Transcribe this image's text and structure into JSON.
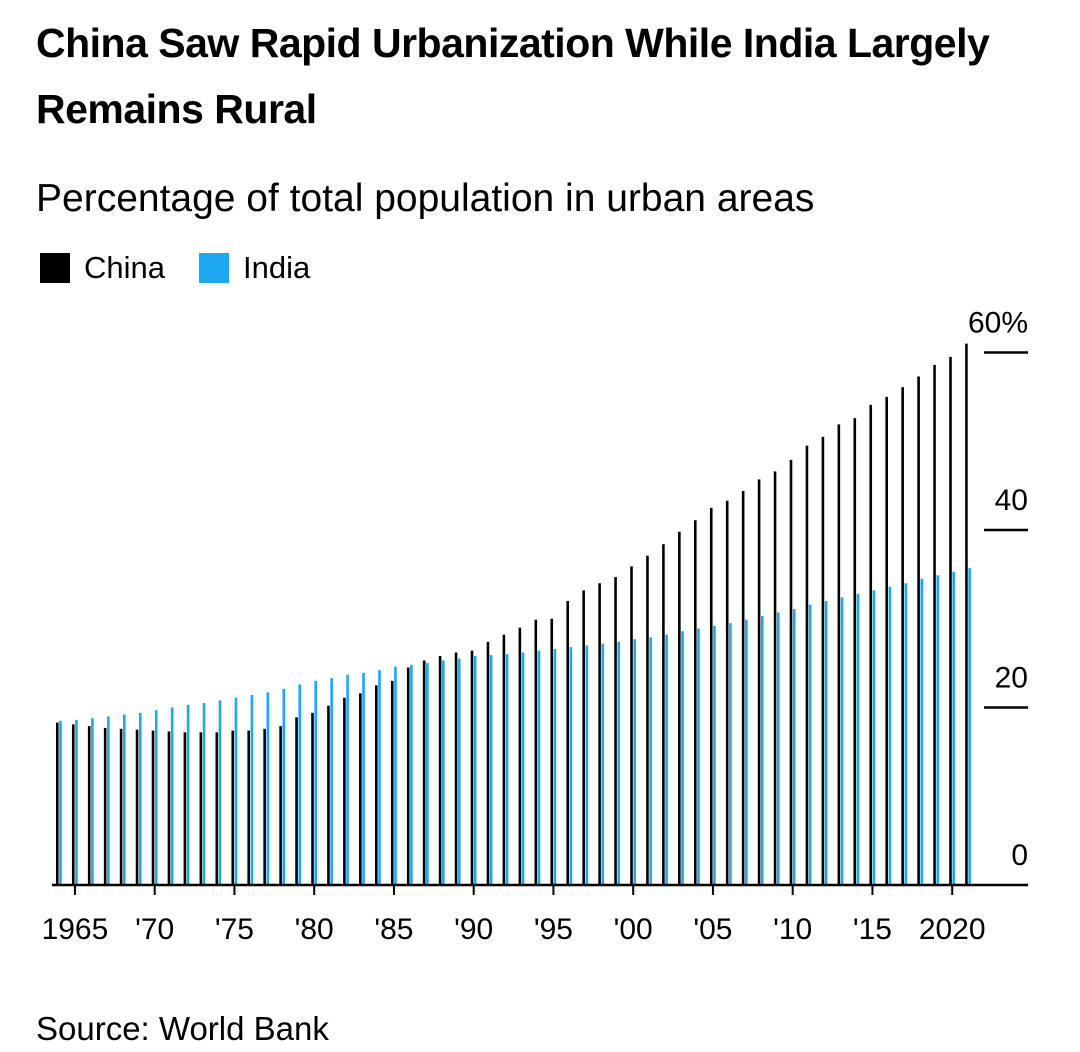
{
  "title": "China Saw Rapid Urbanization While India Largely Remains Rural",
  "subtitle": "Percentage of total population in urban areas",
  "source": "Source: World Bank",
  "colors": {
    "china": "#000000",
    "india": "#1da7ef"
  },
  "legend": [
    {
      "name": "China",
      "color": "#000000"
    },
    {
      "name": "India",
      "color": "#1da7ef"
    }
  ],
  "chart_data": {
    "type": "bar",
    "title": "China Saw Rapid Urbanization While India Largely Remains Rural",
    "subtitle": "Percentage of total population in urban areas",
    "xlabel": "",
    "ylabel": "",
    "ylim": [
      0,
      60
    ],
    "yticks": [
      0,
      20,
      40,
      60
    ],
    "ytick_labels": [
      "0",
      "20",
      "40",
      "60%"
    ],
    "xticks": [
      1965,
      1970,
      1975,
      1980,
      1985,
      1990,
      1995,
      2000,
      2005,
      2010,
      2015,
      2020
    ],
    "xtick_labels": [
      "1965",
      "'70",
      "'75",
      "'80",
      "'85",
      "'90",
      "'95",
      "'00",
      "'05",
      "'10",
      "'15",
      "2020"
    ],
    "legend_position": "top-left",
    "x": [
      1964,
      1965,
      1966,
      1967,
      1968,
      1969,
      1970,
      1971,
      1972,
      1973,
      1974,
      1975,
      1976,
      1977,
      1978,
      1979,
      1980,
      1981,
      1982,
      1983,
      1984,
      1985,
      1986,
      1987,
      1988,
      1989,
      1990,
      1991,
      1992,
      1993,
      1994,
      1995,
      1996,
      1997,
      1998,
      1999,
      2000,
      2001,
      2002,
      2003,
      2004,
      2005,
      2006,
      2007,
      2008,
      2009,
      2010,
      2011,
      2012,
      2013,
      2014,
      2015,
      2016,
      2017,
      2018,
      2019,
      2020,
      2021
    ],
    "series": [
      {
        "name": "China",
        "values": [
          18.3,
          18.1,
          17.9,
          17.7,
          17.6,
          17.5,
          17.4,
          17.3,
          17.2,
          17.2,
          17.2,
          17.4,
          17.4,
          17.6,
          17.9,
          18.9,
          19.4,
          20.2,
          21.1,
          21.6,
          22.5,
          23.0,
          24.5,
          25.3,
          25.8,
          26.2,
          26.4,
          27.4,
          28.2,
          29.0,
          29.9,
          30.0,
          32.0,
          33.2,
          34.0,
          34.7,
          35.9,
          37.1,
          38.4,
          39.8,
          41.1,
          42.5,
          43.3,
          44.4,
          45.7,
          46.6,
          47.9,
          49.5,
          50.5,
          51.9,
          52.6,
          54.1,
          55.0,
          56.1,
          57.3,
          58.6,
          59.5,
          61.0
        ]
      },
      {
        "name": "India",
        "values": [
          18.5,
          18.6,
          18.8,
          19.0,
          19.2,
          19.4,
          19.7,
          20.0,
          20.3,
          20.5,
          20.8,
          21.1,
          21.4,
          21.7,
          22.1,
          22.6,
          23.0,
          23.3,
          23.7,
          23.9,
          24.2,
          24.6,
          24.8,
          25.0,
          25.3,
          25.5,
          25.8,
          25.9,
          26.0,
          26.2,
          26.4,
          26.6,
          26.8,
          27.0,
          27.2,
          27.4,
          27.7,
          27.9,
          28.2,
          28.6,
          28.9,
          29.2,
          29.5,
          29.9,
          30.3,
          30.7,
          31.1,
          31.6,
          32.0,
          32.4,
          32.8,
          33.2,
          33.6,
          34.0,
          34.5,
          34.9,
          35.3,
          35.7
        ]
      }
    ]
  }
}
